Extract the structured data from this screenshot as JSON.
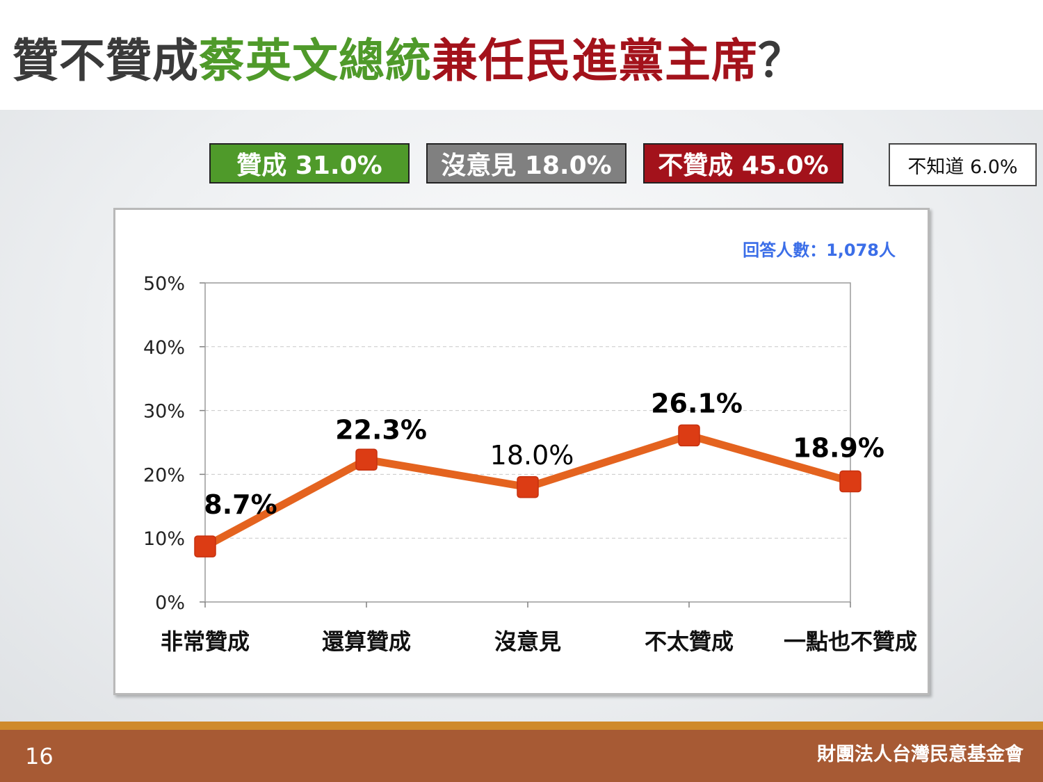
{
  "title": {
    "part1": "贊不贊成",
    "part2": "蔡英文總統",
    "part3": "兼任民進黨主席",
    "part4": "？"
  },
  "summary": {
    "approve": "贊成 31.0%",
    "no_opinion": "沒意見 18.0%",
    "disapprove": "不贊成 45.0%",
    "dont_know": "不知道 6.0%"
  },
  "respondents": "回答人數：1,078人",
  "footer": {
    "page_number": "16",
    "organization": "財團法人台灣民意基金會"
  },
  "colors": {
    "approve": "#4f9a2a",
    "no_opinion": "#808080",
    "disapprove": "#a3121b",
    "line": "#e4631f",
    "marker": "#dc3c14",
    "respondents_text": "#3b6ee8"
  },
  "chart_data": {
    "type": "line",
    "title": "",
    "xlabel": "",
    "ylabel": "",
    "categories": [
      "非常贊成",
      "還算贊成",
      "沒意見",
      "不太贊成",
      "一點也不贊成"
    ],
    "series": [
      {
        "values": [
          8.7,
          22.3,
          18.0,
          26.1,
          18.9
        ]
      }
    ],
    "data_labels": [
      "8.7%",
      "22.3%",
      "18.0%",
      "26.1%",
      "18.9%"
    ],
    "ylim": [
      0,
      50
    ],
    "yticks": [
      0,
      10,
      20,
      30,
      40,
      50
    ],
    "ytick_labels": [
      "0%",
      "10%",
      "20%",
      "30%",
      "40%",
      "50%"
    ],
    "grid": true,
    "legend": "none"
  }
}
